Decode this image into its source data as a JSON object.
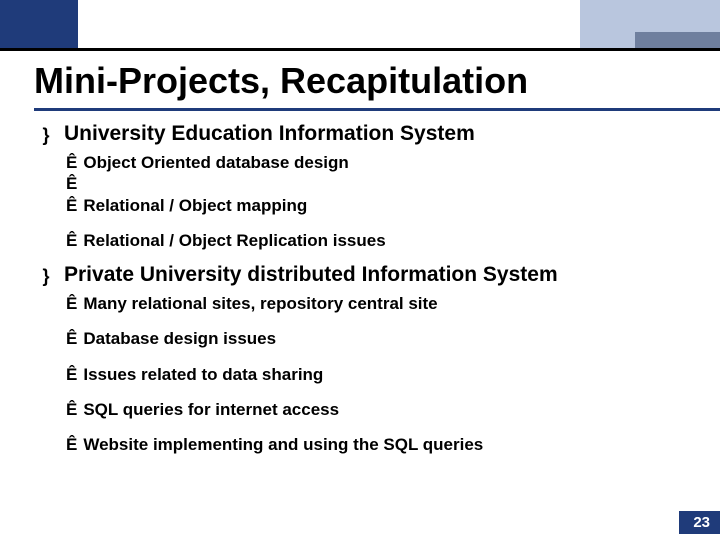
{
  "colors": {
    "dark_blue": "#1f3b7a",
    "light_blue": "#b9c6de",
    "gray_blue": "#6f7f9e",
    "black": "#000000",
    "white": "#ffffff"
  },
  "title": "Mini-Projects, Recapitulation",
  "section_bullet": "}",
  "sub_bullet": "Ê",
  "sections": [
    {
      "heading": "University Education Information System",
      "items": [
        {
          "text": "Object Oriented  database design",
          "gap": false
        },
        {
          "text": "",
          "gap": false
        },
        {
          "text": "Relational / Object mapping",
          "gap": false
        },
        {
          "text": "Relational / Object Replication issues",
          "gap": true
        }
      ]
    },
    {
      "heading": "Private University distributed Information System",
      "items": [
        {
          "text": "Many relational sites, repository central site",
          "gap": false
        },
        {
          "text": "Database design issues",
          "gap": true
        },
        {
          "text": "Issues related to data sharing",
          "gap": true
        },
        {
          "text": "SQL queries for internet access",
          "gap": true
        },
        {
          "text": "Website implementing and using the SQL queries",
          "gap": true
        }
      ]
    }
  ],
  "page_number": "23"
}
